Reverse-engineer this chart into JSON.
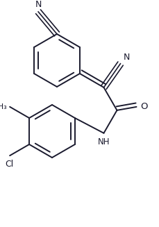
{
  "bg_color": "#ffffff",
  "line_color": "#1a1a2e",
  "lw": 1.4,
  "figsize": [
    2.3,
    3.27
  ],
  "dpi": 100,
  "xlim": [
    0,
    2.3
  ],
  "ylim": [
    0,
    3.27
  ]
}
